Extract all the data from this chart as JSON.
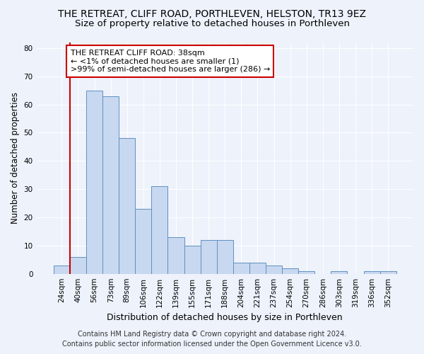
{
  "title": "THE RETREAT, CLIFF ROAD, PORTHLEVEN, HELSTON, TR13 9EZ",
  "subtitle": "Size of property relative to detached houses in Porthleven",
  "xlabel": "Distribution of detached houses by size in Porthleven",
  "ylabel": "Number of detached properties",
  "categories": [
    "24sqm",
    "40sqm",
    "56sqm",
    "73sqm",
    "89sqm",
    "106sqm",
    "122sqm",
    "139sqm",
    "155sqm",
    "171sqm",
    "188sqm",
    "204sqm",
    "221sqm",
    "237sqm",
    "254sqm",
    "270sqm",
    "286sqm",
    "303sqm",
    "319sqm",
    "336sqm",
    "352sqm"
  ],
  "values": [
    3,
    6,
    65,
    63,
    48,
    23,
    31,
    13,
    10,
    12,
    12,
    4,
    4,
    3,
    2,
    1,
    0,
    1,
    0,
    1,
    1
  ],
  "bar_color": "#c8d8f0",
  "bar_edge_color": "#6090c0",
  "annotation_title": "THE RETREAT CLIFF ROAD: 38sqm",
  "annotation_line1": "← <1% of detached houses are smaller (1)",
  "annotation_line2": ">99% of semi-detached houses are larger (286) →",
  "annotation_box_facecolor": "#ffffff",
  "annotation_box_edgecolor": "#cc0000",
  "vline_color": "#cc0000",
  "footer1": "Contains HM Land Registry data © Crown copyright and database right 2024.",
  "footer2": "Contains public sector information licensed under the Open Government Licence v3.0.",
  "title_fontsize": 10,
  "subtitle_fontsize": 9.5,
  "xlabel_fontsize": 9,
  "ylabel_fontsize": 8.5,
  "tick_fontsize": 7.5,
  "ann_fontsize": 8,
  "footer_fontsize": 7,
  "ylim": [
    0,
    82
  ],
  "yticks": [
    0,
    10,
    20,
    30,
    40,
    50,
    60,
    70,
    80
  ],
  "background_color": "#edf2fb",
  "grid_color": "#ffffff",
  "vline_x": 0.5
}
